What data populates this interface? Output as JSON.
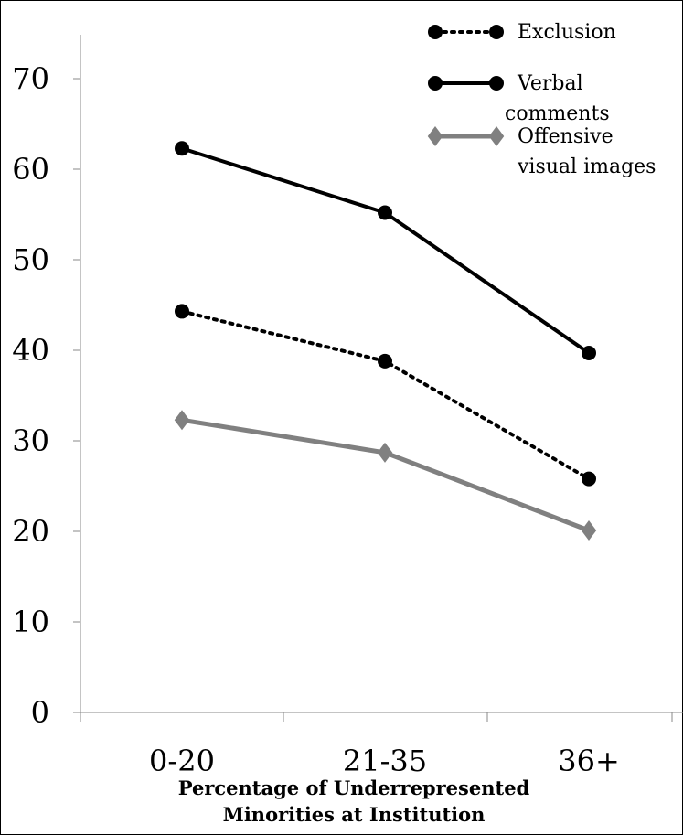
{
  "chart_data": {
    "type": "line",
    "categories": [
      "0-20",
      "21-35",
      "36+"
    ],
    "series": [
      {
        "name": "Exclusion",
        "values": [
          44.3,
          38.8,
          25.8
        ],
        "color": "#000000",
        "style": "dotted",
        "marker": "circle"
      },
      {
        "name": "Verbal comments",
        "values": [
          62.3,
          55.2,
          39.7
        ],
        "color": "#000000",
        "style": "solid",
        "marker": "circle"
      },
      {
        "name": "Offensive visual images",
        "values": [
          32.3,
          28.7,
          20.1
        ],
        "color": "#808080",
        "style": "solid",
        "marker": "diamond"
      }
    ],
    "title": "",
    "xlabel": "Percentage of Underrepresented Minorities at Institution",
    "xlabel_lines": [
      "Percentage of Underrepresented",
      "Minorities at Institution"
    ],
    "ylabel": "",
    "ylim": [
      0,
      75
    ],
    "yticks": [
      0,
      10,
      20,
      30,
      40,
      50,
      60,
      70
    ],
    "legend": {
      "position": "top-right",
      "lines": [
        [
          "Exclusion"
        ],
        [
          "Verbal",
          "comments"
        ],
        [
          "Offensive",
          "visual images"
        ]
      ]
    },
    "grid": false
  }
}
